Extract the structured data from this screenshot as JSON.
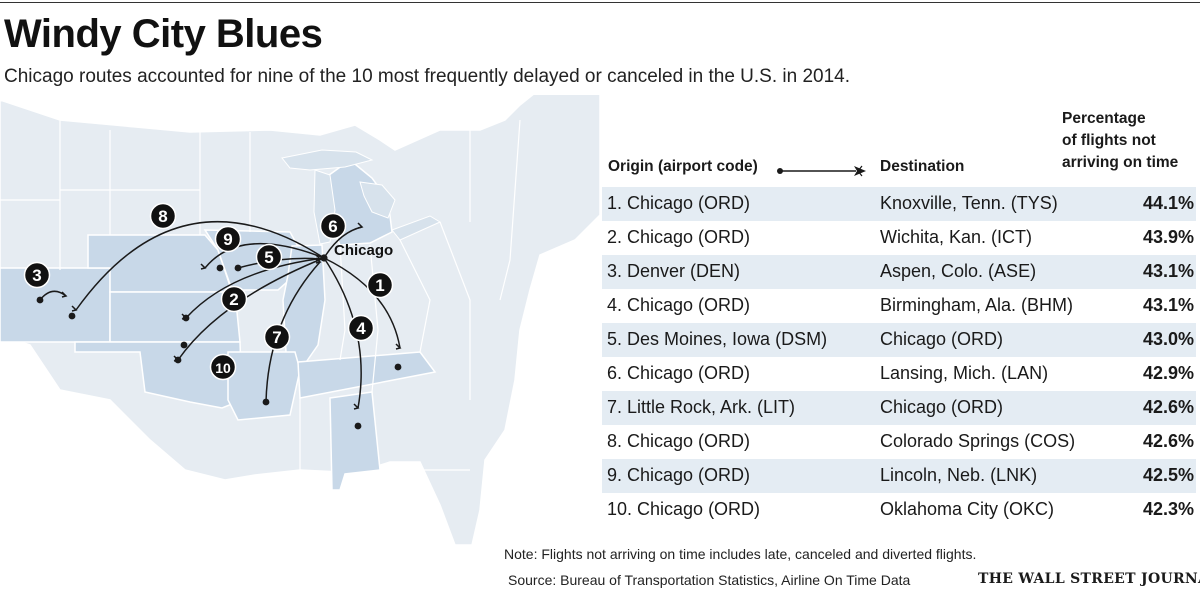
{
  "header": {
    "title": "Windy City Blues",
    "subtitle": "Chicago routes accounted for nine of the 10 most frequently delayed or canceled in the U.S. in 2014."
  },
  "map": {
    "hub_label": "Chicago",
    "route_markers": [
      "1",
      "2",
      "3",
      "4",
      "5",
      "6",
      "7",
      "8",
      "9",
      "10"
    ],
    "colors": {
      "land": "#e6ecf2",
      "highlighted_states": "#c8d8e8",
      "great_lakes": "#d7e2ec",
      "route_line": "#1a1a1a",
      "marker_fill": "#111111"
    }
  },
  "table": {
    "origin_header": "Origin (airport code)",
    "destination_header": "Destination",
    "pct_header_lines": [
      "Percentage",
      "of flights not",
      "arriving on time"
    ],
    "rows": [
      {
        "origin": "1. Chicago (ORD)",
        "destination": "Knoxville, Tenn. (TYS)",
        "pct": "44.1%"
      },
      {
        "origin": "2. Chicago (ORD)",
        "destination": "Wichita, Kan. (ICT)",
        "pct": "43.9%"
      },
      {
        "origin": "3. Denver (DEN)",
        "destination": "Aspen, Colo. (ASE)",
        "pct": "43.1%"
      },
      {
        "origin": "4. Chicago (ORD)",
        "destination": "Birmingham, Ala. (BHM)",
        "pct": "43.1%"
      },
      {
        "origin": "5. Des Moines, Iowa (DSM)",
        "destination": "Chicago (ORD)",
        "pct": "43.0%"
      },
      {
        "origin": "6. Chicago (ORD)",
        "destination": "Lansing, Mich. (LAN)",
        "pct": "42.9%"
      },
      {
        "origin": "7. Little Rock, Ark. (LIT)",
        "destination": "Chicago (ORD)",
        "pct": "42.6%"
      },
      {
        "origin": "8. Chicago (ORD)",
        "destination": "Colorado Springs (COS)",
        "pct": "42.6%"
      },
      {
        "origin": "9. Chicago (ORD)",
        "destination": "Lincoln, Neb. (LNK)",
        "pct": "42.5%"
      },
      {
        "origin": "10. Chicago (ORD)",
        "destination": "Oklahoma City (OKC)",
        "pct": "42.3%"
      }
    ]
  },
  "footer": {
    "note": "Note: Flights not arriving on time includes late, canceled and diverted flights.",
    "source": "Source: Bureau of Transportation Statistics, Airline On Time Data",
    "publisher": "THE WALL STREET JOURNAL."
  }
}
